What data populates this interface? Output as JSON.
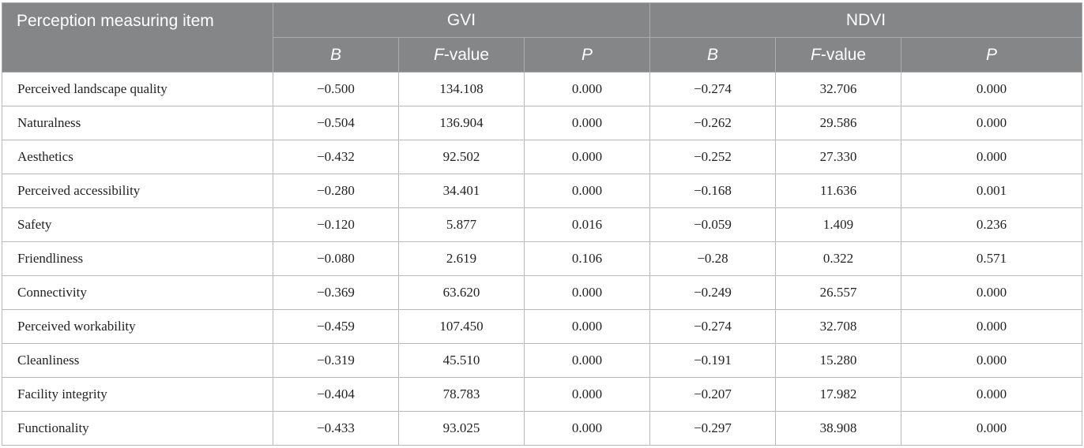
{
  "table": {
    "header": {
      "item": "Perception measuring item",
      "groups": [
        "GVI",
        "NDVI"
      ],
      "sub": [
        {
          "italic": "B",
          "rest": ""
        },
        {
          "italic": "F",
          "rest": "-value"
        },
        {
          "italic": "P",
          "rest": ""
        }
      ]
    },
    "rows": [
      [
        "Perceived landscape quality",
        "−0.500",
        "134.108",
        "0.000",
        "−0.274",
        "32.706",
        "0.000"
      ],
      [
        "Naturalness",
        "−0.504",
        "136.904",
        "0.000",
        "−0.262",
        "29.586",
        "0.000"
      ],
      [
        "Aesthetics",
        "−0.432",
        "92.502",
        "0.000",
        "−0.252",
        "27.330",
        "0.000"
      ],
      [
        "Perceived accessibility",
        "−0.280",
        "34.401",
        "0.000",
        "−0.168",
        "11.636",
        "0.001"
      ],
      [
        "Safety",
        "−0.120",
        "5.877",
        "0.016",
        "−0.059",
        "1.409",
        "0.236"
      ],
      [
        "Friendliness",
        "−0.080",
        "2.619",
        "0.106",
        "−0.28",
        "0.322",
        "0.571"
      ],
      [
        "Connectivity",
        "−0.369",
        "63.620",
        "0.000",
        "−0.249",
        "26.557",
        "0.000"
      ],
      [
        "Perceived workability",
        "−0.459",
        "107.450",
        "0.000",
        "−0.274",
        "32.708",
        "0.000"
      ],
      [
        "Cleanliness",
        "−0.319",
        "45.510",
        "0.000",
        "−0.191",
        "15.280",
        "0.000"
      ],
      [
        "Facility integrity",
        "−0.404",
        "78.783",
        "0.000",
        "−0.207",
        "17.982",
        "0.000"
      ],
      [
        "Functionality",
        "−0.433",
        "93.025",
        "0.000",
        "−0.297",
        "38.908",
        "0.000"
      ]
    ]
  },
  "colors": {
    "header_bg": "#848688",
    "header_text": "#ffffff",
    "grid": "#b9b9b9"
  }
}
